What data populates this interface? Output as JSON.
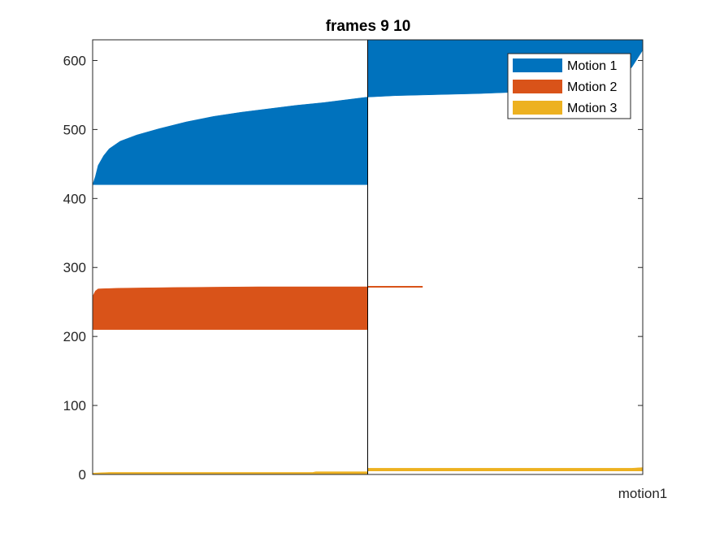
{
  "chart_data": {
    "type": "area",
    "title": "frames 9 10",
    "xlabel": "motion1",
    "ylabel": "",
    "ylim": [
      0,
      630
    ],
    "yticks": [
      0,
      100,
      200,
      300,
      400,
      500,
      600
    ],
    "grid": false,
    "legend": {
      "location": "top-right",
      "entries": [
        "Motion 1",
        "Motion 2",
        "Motion 3"
      ]
    },
    "colors": {
      "Motion 1": "#0072BD",
      "Motion 2": "#D95319",
      "Motion 3": "#EDB120",
      "axis": "#262626"
    },
    "x_range": [
      0,
      1
    ],
    "frame_boundary_x": 0.5,
    "series": [
      {
        "name": "Motion 1",
        "segments": [
          {
            "base": 420,
            "x": [
              0.0,
              0.005,
              0.01,
              0.02,
              0.03,
              0.05,
              0.08,
              0.12,
              0.17,
              0.22,
              0.27,
              0.32,
              0.37,
              0.42,
              0.47,
              0.5
            ],
            "top": [
              420,
              432,
              448,
              462,
              472,
              483,
              492,
              501,
              511,
              519,
              525,
              530,
              535,
              539,
              544,
              547
            ]
          },
          {
            "base": 547,
            "x": [
              0.5,
              0.55,
              0.6,
              0.7,
              0.8,
              0.9,
              0.95,
              0.98,
              1.0
            ],
            "top": [
              630,
              630,
              630,
              630,
              630,
              630,
              630,
              630,
              630
            ],
            "lower": [
              547,
              549,
              550,
              552,
              555,
              560,
              570,
              590,
              615
            ]
          }
        ]
      },
      {
        "name": "Motion 2",
        "segments": [
          {
            "base": 210,
            "x": [
              0.0,
              0.005,
              0.01,
              0.05,
              0.15,
              0.3,
              0.5
            ],
            "top": [
              258,
              266,
              269,
              270,
              271,
              272,
              272
            ]
          }
        ],
        "line": {
          "x": [
            0.5,
            0.6
          ],
          "y": [
            272,
            272
          ]
        }
      },
      {
        "name": "Motion 3",
        "segments": [
          {
            "base": 1,
            "x": [
              0.0,
              0.03,
              0.4,
              0.406,
              0.5
            ],
            "top": [
              2,
              3,
              3,
              4,
              4
            ]
          },
          {
            "base": 5,
            "x": [
              0.5,
              0.85,
              0.96,
              0.98,
              1.0
            ],
            "top": [
              9,
              9,
              9,
              9,
              10
            ]
          }
        ]
      }
    ]
  }
}
